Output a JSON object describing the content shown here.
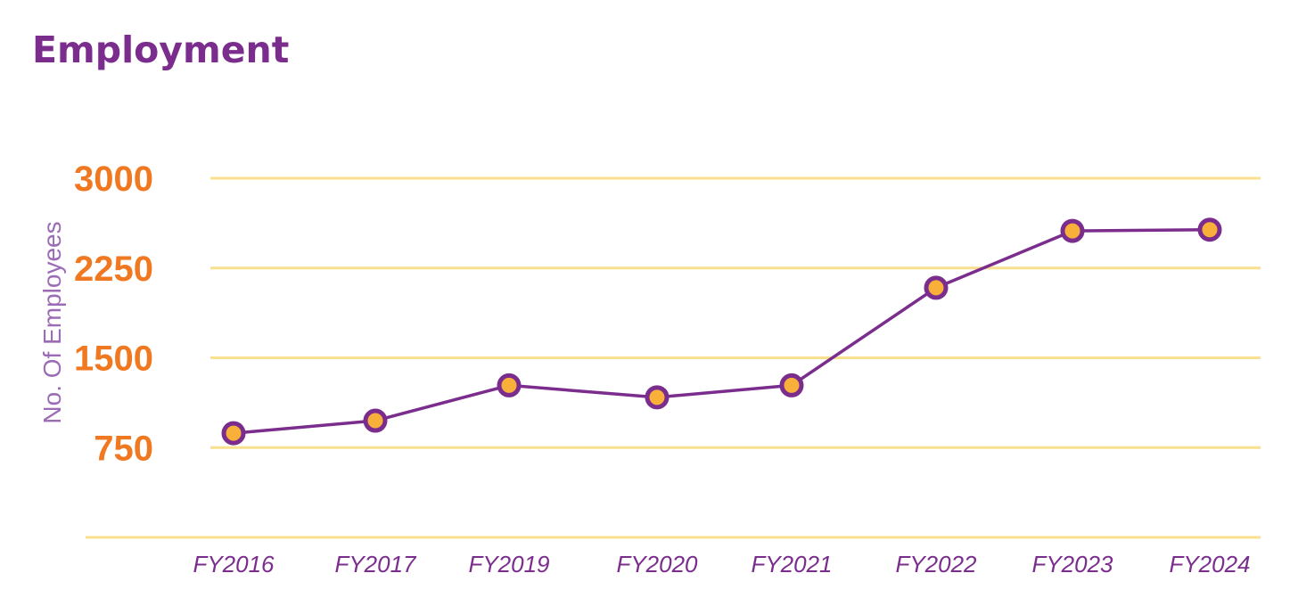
{
  "colors": {
    "title": "#7B2D8E",
    "grid": "#F8E08E",
    "ytick": "#F07820",
    "xtick": "#7B2D8E",
    "ylabel": "#9B6BB5",
    "line": "#7B2D8E",
    "marker_fill": "#F9B03A",
    "marker_stroke": "#7B2D8E"
  },
  "chart_data": {
    "type": "line",
    "title": "Employment",
    "xlabel": "",
    "ylabel": "No. Of Employees",
    "categories": [
      "FY2016",
      "FY2017",
      "FY2019",
      "FY2020",
      "FY2021",
      "FY2022",
      "FY2023",
      "FY2024"
    ],
    "series": [
      {
        "values": [
          870,
          975,
          1270,
          1170,
          1270,
          2085,
          2560,
          2570
        ]
      }
    ],
    "yticks": [
      750,
      1500,
      2250,
      3000
    ],
    "ylim": [
      0,
      3000
    ],
    "grid": true,
    "legend": "none"
  }
}
